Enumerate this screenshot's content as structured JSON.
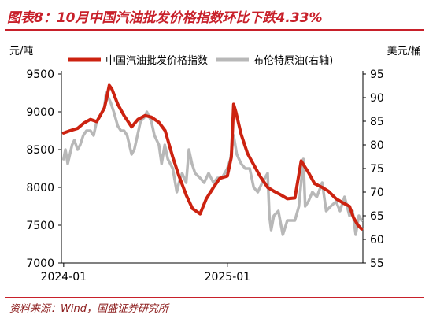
{
  "figure": {
    "label": "图表8：",
    "title": "10月中国汽油批发价格指数环比下跌4.33%"
  },
  "source": {
    "label": "资料来源：",
    "text": "Wind，国盛证券研究所"
  },
  "colors": {
    "accent": "#c8202a",
    "series_china": "#cc2210",
    "series_brent": "#b8b8b8",
    "source_text": "#8b1a1a"
  },
  "chart_data": {
    "type": "line",
    "title": "",
    "left_unit": "元/吨",
    "right_unit": "美元/桶",
    "x_ticks": [
      "2024-01",
      "2025-01"
    ],
    "y_left": {
      "ticks": [
        7000,
        7500,
        8000,
        8500,
        9000,
        9500
      ],
      "ylim": [
        7000,
        9500
      ]
    },
    "y_right": {
      "ticks": [
        55,
        60,
        65,
        70,
        75,
        80,
        85,
        90,
        95
      ],
      "ylim": [
        55,
        95
      ]
    },
    "xlim": [
      "2023-12-27",
      "2025-10-31"
    ],
    "grid": false,
    "legend_position": "top",
    "series": [
      {
        "name": "中国汽油批发价格指数",
        "axis": "left",
        "color": "#cc2210",
        "points": [
          [
            "2024-01-01",
            8720
          ],
          [
            "2024-01-15",
            8750
          ],
          [
            "2024-02-01",
            8780
          ],
          [
            "2024-02-15",
            8850
          ],
          [
            "2024-03-01",
            8900
          ],
          [
            "2024-03-15",
            8870
          ],
          [
            "2024-04-01",
            9050
          ],
          [
            "2024-04-08",
            9230
          ],
          [
            "2024-04-12",
            9350
          ],
          [
            "2024-04-18",
            9300
          ],
          [
            "2024-05-01",
            9100
          ],
          [
            "2024-05-15",
            8950
          ],
          [
            "2024-06-01",
            8800
          ],
          [
            "2024-06-15",
            8900
          ],
          [
            "2024-07-01",
            8950
          ],
          [
            "2024-07-15",
            8930
          ],
          [
            "2024-08-01",
            8860
          ],
          [
            "2024-08-15",
            8750
          ],
          [
            "2024-09-01",
            8400
          ],
          [
            "2024-09-15",
            8150
          ],
          [
            "2024-10-01",
            7900
          ],
          [
            "2024-10-15",
            7720
          ],
          [
            "2024-11-01",
            7650
          ],
          [
            "2024-11-15",
            7850
          ],
          [
            "2024-12-01",
            8000
          ],
          [
            "2024-12-15",
            8120
          ],
          [
            "2025-01-01",
            8150
          ],
          [
            "2025-01-10",
            8400
          ],
          [
            "2025-01-15",
            9100
          ],
          [
            "2025-01-20",
            9000
          ],
          [
            "2025-02-01",
            8700
          ],
          [
            "2025-02-15",
            8450
          ],
          [
            "2025-03-01",
            8300
          ],
          [
            "2025-03-15",
            8150
          ],
          [
            "2025-04-01",
            8000
          ],
          [
            "2025-04-15",
            7950
          ],
          [
            "2025-05-01",
            7900
          ],
          [
            "2025-05-15",
            7850
          ],
          [
            "2025-06-01",
            7860
          ],
          [
            "2025-06-15",
            8350
          ],
          [
            "2025-07-01",
            8200
          ],
          [
            "2025-07-15",
            8050
          ],
          [
            "2025-08-01",
            8000
          ],
          [
            "2025-08-15",
            7950
          ],
          [
            "2025-09-01",
            7850
          ],
          [
            "2025-09-15",
            7800
          ],
          [
            "2025-10-01",
            7750
          ],
          [
            "2025-10-10",
            7600
          ],
          [
            "2025-10-20",
            7500
          ],
          [
            "2025-10-28",
            7450
          ]
        ]
      },
      {
        "name": "布伦特原油(右轴)",
        "axis": "right",
        "color": "#b8b8b8",
        "points": [
          [
            "2024-01-01",
            77
          ],
          [
            "2024-01-05",
            79
          ],
          [
            "2024-01-10",
            76
          ],
          [
            "2024-01-15",
            78
          ],
          [
            "2024-01-20",
            80
          ],
          [
            "2024-01-25",
            81
          ],
          [
            "2024-02-01",
            79
          ],
          [
            "2024-02-07",
            80
          ],
          [
            "2024-02-14",
            82
          ],
          [
            "2024-02-21",
            83
          ],
          [
            "2024-03-01",
            83
          ],
          [
            "2024-03-08",
            82
          ],
          [
            "2024-03-15",
            85
          ],
          [
            "2024-03-22",
            86
          ],
          [
            "2024-04-01",
            88
          ],
          [
            "2024-04-05",
            91
          ],
          [
            "2024-04-10",
            90
          ],
          [
            "2024-04-15",
            89
          ],
          [
            "2024-04-22",
            87
          ],
          [
            "2024-05-01",
            84
          ],
          [
            "2024-05-08",
            83
          ],
          [
            "2024-05-15",
            83
          ],
          [
            "2024-05-22",
            82
          ],
          [
            "2024-06-01",
            78
          ],
          [
            "2024-06-07",
            79
          ],
          [
            "2024-06-14",
            82
          ],
          [
            "2024-06-21",
            85
          ],
          [
            "2024-07-01",
            86
          ],
          [
            "2024-07-05",
            87
          ],
          [
            "2024-07-15",
            85
          ],
          [
            "2024-07-22",
            82
          ],
          [
            "2024-08-01",
            80
          ],
          [
            "2024-08-07",
            76
          ],
          [
            "2024-08-14",
            80
          ],
          [
            "2024-08-21",
            77
          ],
          [
            "2024-09-01",
            75
          ],
          [
            "2024-09-10",
            70
          ],
          [
            "2024-09-15",
            72
          ],
          [
            "2024-09-22",
            74
          ],
          [
            "2024-10-01",
            72
          ],
          [
            "2024-10-07",
            79
          ],
          [
            "2024-10-14",
            76
          ],
          [
            "2024-10-21",
            74
          ],
          [
            "2024-11-01",
            73
          ],
          [
            "2024-11-10",
            72
          ],
          [
            "2024-11-20",
            74
          ],
          [
            "2024-12-01",
            72
          ],
          [
            "2024-12-10",
            73
          ],
          [
            "2024-12-20",
            73
          ],
          [
            "2025-01-01",
            75
          ],
          [
            "2025-01-08",
            77
          ],
          [
            "2025-01-15",
            82
          ],
          [
            "2025-01-22",
            78
          ],
          [
            "2025-02-01",
            76
          ],
          [
            "2025-02-10",
            75
          ],
          [
            "2025-02-20",
            75
          ],
          [
            "2025-03-01",
            71
          ],
          [
            "2025-03-10",
            70
          ],
          [
            "2025-03-20",
            72
          ],
          [
            "2025-04-01",
            74
          ],
          [
            "2025-04-05",
            65
          ],
          [
            "2025-04-09",
            62
          ],
          [
            "2025-04-15",
            65
          ],
          [
            "2025-04-25",
            66
          ],
          [
            "2025-05-05",
            61
          ],
          [
            "2025-05-15",
            64
          ],
          [
            "2025-05-25",
            64
          ],
          [
            "2025-06-01",
            64
          ],
          [
            "2025-06-10",
            67
          ],
          [
            "2025-06-20",
            77
          ],
          [
            "2025-06-24",
            67
          ],
          [
            "2025-07-01",
            68
          ],
          [
            "2025-07-10",
            70
          ],
          [
            "2025-07-20",
            69
          ],
          [
            "2025-08-01",
            72
          ],
          [
            "2025-08-10",
            66
          ],
          [
            "2025-08-20",
            67
          ],
          [
            "2025-09-01",
            68
          ],
          [
            "2025-09-10",
            66
          ],
          [
            "2025-09-20",
            69
          ],
          [
            "2025-10-01",
            65
          ],
          [
            "2025-10-08",
            66
          ],
          [
            "2025-10-15",
            61
          ],
          [
            "2025-10-22",
            65
          ],
          [
            "2025-10-28",
            64
          ]
        ]
      }
    ]
  }
}
